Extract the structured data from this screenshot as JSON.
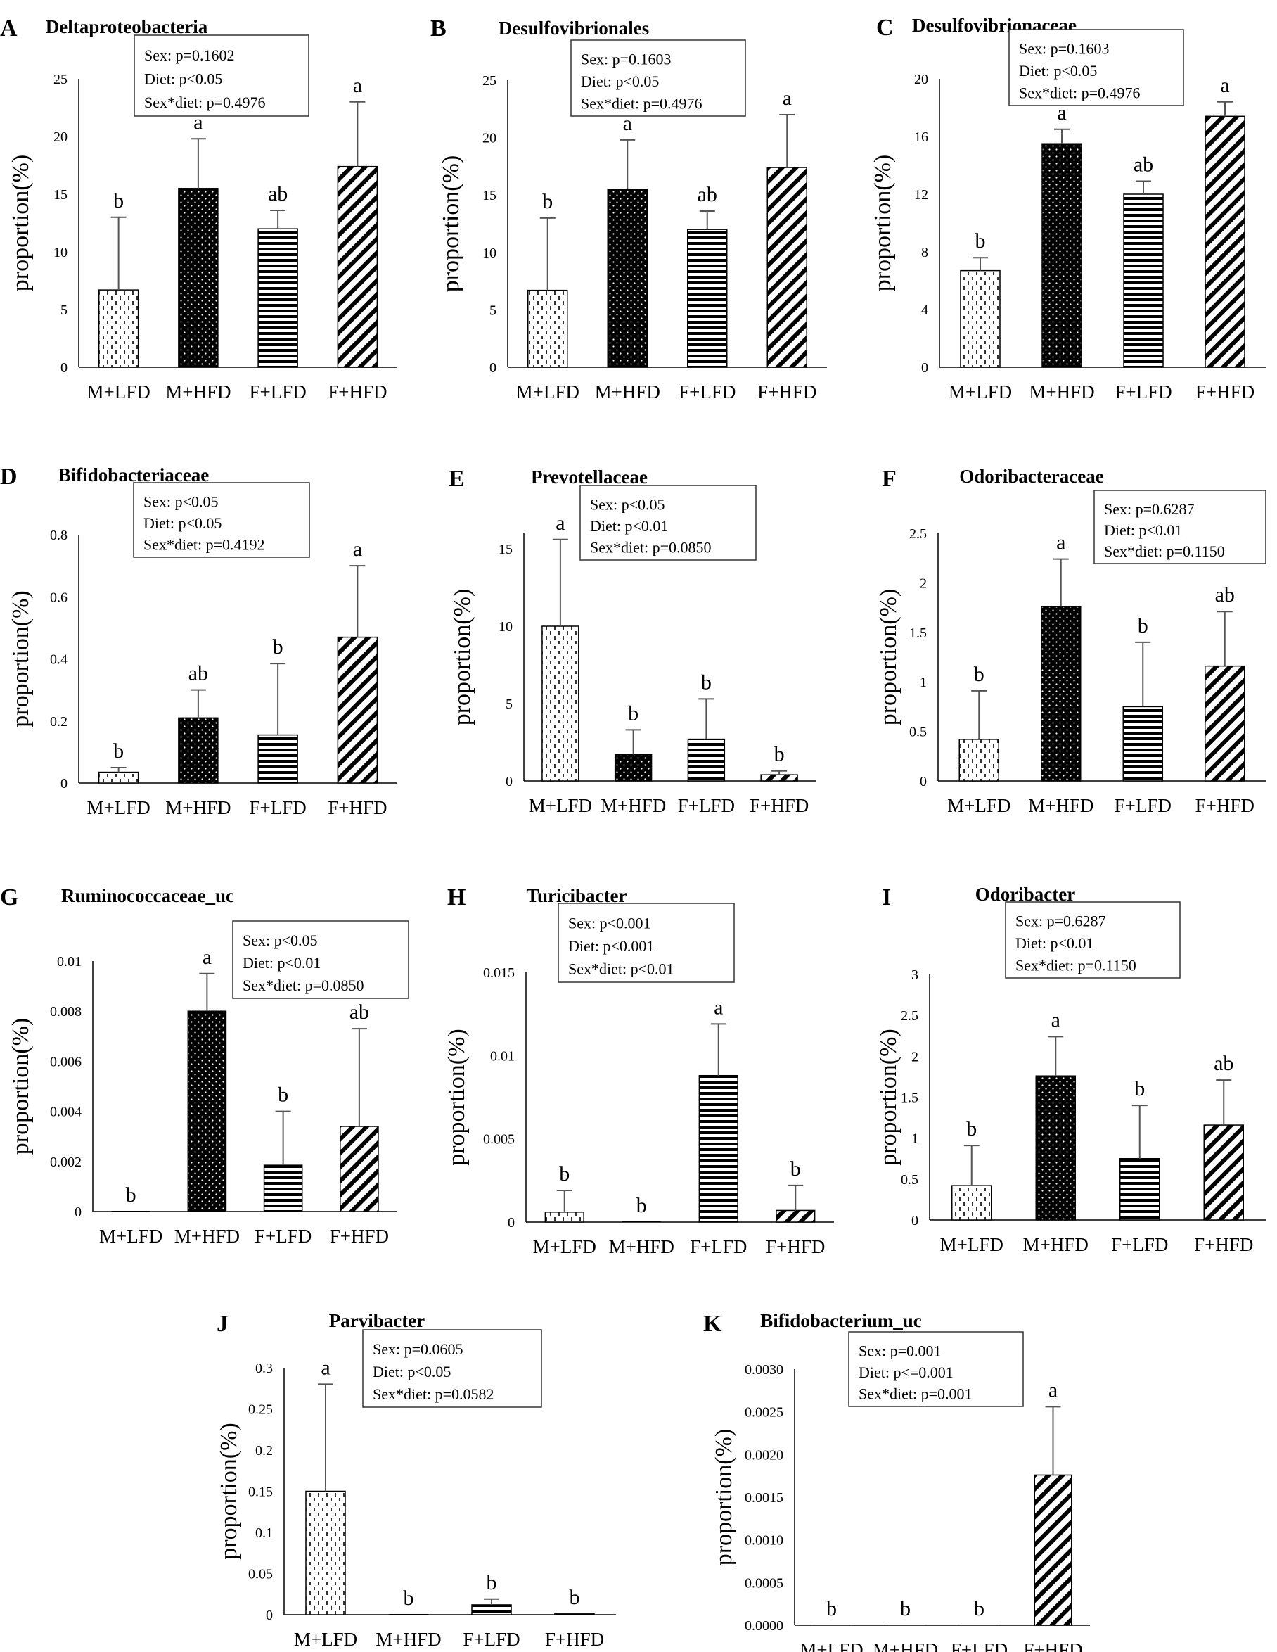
{
  "figure": {
    "chart_data": [
      {
        "panel": "A",
        "type": "bar",
        "title": "Deltaproteobacteria",
        "ylabel": "proportion(%)",
        "ylim": [
          0,
          25
        ],
        "yticks": [
          0,
          5,
          10,
          15,
          20,
          25
        ],
        "ytick_labels": [
          "0",
          "5",
          "10",
          "15",
          "20",
          "25"
        ],
        "categories": [
          "M+LFD",
          "M+HFD",
          "F+LFD",
          "F+HFD"
        ],
        "values": [
          6.7,
          15.5,
          12.0,
          17.4
        ],
        "errors": [
          6.3,
          4.3,
          1.6,
          5.6
        ],
        "letters": [
          "b",
          "a",
          "ab",
          "a"
        ],
        "stats": [
          "Sex: p=0.1602",
          "Diet: p<0.05",
          "Sex*diet: p=0.4976"
        ]
      },
      {
        "panel": "B",
        "type": "bar",
        "title": "Desulfovibrionales",
        "ylabel": "proportion(%)",
        "ylim": [
          0,
          25
        ],
        "yticks": [
          0,
          5,
          10,
          15,
          20,
          25
        ],
        "ytick_labels": [
          "0",
          "5",
          "10",
          "15",
          "20",
          "25"
        ],
        "categories": [
          "M+LFD",
          "M+HFD",
          "F+LFD",
          "F+HFD"
        ],
        "values": [
          6.7,
          15.5,
          12.0,
          17.4
        ],
        "errors": [
          6.3,
          4.3,
          1.6,
          4.6
        ],
        "letters": [
          "b",
          "a",
          "ab",
          "a"
        ],
        "stats": [
          "Sex: p=0.1603",
          "Diet: p<0.05",
          "Sex*diet: p=0.4976"
        ]
      },
      {
        "panel": "C",
        "type": "bar",
        "title": "Desulfovibrionaceae",
        "ylabel": "proportion(%)",
        "ylim": [
          0,
          20
        ],
        "yticks": [
          0,
          4,
          8,
          12,
          16,
          20
        ],
        "ytick_labels": [
          "0",
          "4",
          "8",
          "12",
          "16",
          "20"
        ],
        "categories": [
          "M+LFD",
          "M+HFD",
          "F+LFD",
          "F+HFD"
        ],
        "values": [
          6.7,
          15.5,
          12.0,
          17.4
        ],
        "errors": [
          0.9,
          1.0,
          0.9,
          1.0
        ],
        "letters": [
          "b",
          "a",
          "ab",
          "a"
        ],
        "stats": [
          "Sex: p=0.1603",
          "Diet: p<0.05",
          "Sex*diet: p=0.4976"
        ]
      },
      {
        "panel": "D",
        "type": "bar",
        "title": "Bifidobacteriaceae",
        "ylabel": "proportion(%)",
        "ylim": [
          0,
          0.8
        ],
        "yticks": [
          0,
          0.2,
          0.4,
          0.6,
          0.8
        ],
        "ytick_labels": [
          "0",
          "0.2",
          "0.4",
          "0.6",
          "0.8"
        ],
        "categories": [
          "M+LFD",
          "M+HFD",
          "F+LFD",
          "F+HFD"
        ],
        "values": [
          0.035,
          0.21,
          0.155,
          0.47
        ],
        "errors": [
          0.015,
          0.09,
          0.23,
          0.23
        ],
        "letters": [
          "b",
          "ab",
          "b",
          "a"
        ],
        "stats": [
          "Sex: p<0.05",
          "Diet: p<0.05",
          "Sex*diet: p=0.4192"
        ]
      },
      {
        "panel": "E",
        "type": "bar",
        "title": "Prevotellaceae",
        "ylabel": "proportion(%)",
        "ylim": [
          0,
          16
        ],
        "yticks": [
          0,
          5,
          10,
          15
        ],
        "ytick_labels": [
          "0",
          "5",
          "10",
          "15"
        ],
        "categories": [
          "M+LFD",
          "M+HFD",
          "F+LFD",
          "F+HFD"
        ],
        "values": [
          10.0,
          1.7,
          2.7,
          0.4
        ],
        "errors": [
          5.6,
          1.6,
          2.6,
          0.25
        ],
        "letters": [
          "a",
          "b",
          "b",
          "b"
        ],
        "stats": [
          "Sex: p<0.05",
          "Diet: p<0.01",
          "Sex*diet: p=0.0850"
        ]
      },
      {
        "panel": "F",
        "type": "bar",
        "title": "Odoribacteraceae",
        "ylabel": "proportion(%)",
        "ylim": [
          0,
          2.5
        ],
        "yticks": [
          0,
          0.5,
          1,
          1.5,
          2,
          2.5
        ],
        "ytick_labels": [
          "0",
          "0.5",
          "1",
          "1.5",
          "2",
          "2.5"
        ],
        "categories": [
          "M+LFD",
          "M+HFD",
          "F+LFD",
          "F+HFD"
        ],
        "values": [
          0.42,
          1.76,
          0.75,
          1.16
        ],
        "errors": [
          0.49,
          0.48,
          0.65,
          0.55
        ],
        "letters": [
          "b",
          "a",
          "b",
          "ab"
        ],
        "stats": [
          "Sex: p=0.6287",
          "Diet: p<0.01",
          "Sex*diet: p=0.1150"
        ]
      },
      {
        "panel": "G",
        "type": "bar",
        "title": "Ruminococcaceae_uc",
        "ylabel": "proportion(%)",
        "ylim": [
          0,
          0.01
        ],
        "yticks": [
          0,
          0.002,
          0.004,
          0.006,
          0.008,
          0.01
        ],
        "ytick_labels": [
          "0",
          "0.002",
          "0.004",
          "0.006",
          "0.008",
          "0.01"
        ],
        "categories": [
          "M+LFD",
          "M+HFD",
          "F+LFD",
          "F+HFD"
        ],
        "values": [
          0,
          0.008,
          0.00185,
          0.0034
        ],
        "errors": [
          0,
          0.0015,
          0.00215,
          0.0039
        ],
        "letters": [
          "b",
          "a",
          "b",
          "ab"
        ],
        "stats": [
          "Sex: p<0.05",
          "Diet: p<0.01",
          "Sex*diet: p=0.0850"
        ]
      },
      {
        "panel": "H",
        "type": "bar",
        "title": "Turicibacter",
        "ylabel": "proportion(%)",
        "ylim": [
          0,
          0.015
        ],
        "yticks": [
          0,
          0.005,
          0.01,
          0.015
        ],
        "ytick_labels": [
          "0",
          "0.005",
          "0.01",
          "0.015"
        ],
        "categories": [
          "M+LFD",
          "M+HFD",
          "F+LFD",
          "F+HFD"
        ],
        "values": [
          0.0006,
          0,
          0.0088,
          0.0007
        ],
        "errors": [
          0.0013,
          0,
          0.0031,
          0.0015
        ],
        "letters": [
          "b",
          "b",
          "a",
          "b"
        ],
        "stats": [
          "Sex: p<0.001",
          "Diet: p<0.001",
          "Sex*diet: p<0.01"
        ]
      },
      {
        "panel": "I",
        "type": "bar",
        "title": "Odoribacter",
        "ylabel": "proportion(%)",
        "ylim": [
          0,
          3
        ],
        "yticks": [
          0,
          0.5,
          1,
          1.5,
          2,
          2.5,
          3
        ],
        "ytick_labels": [
          "0",
          "0.5",
          "1",
          "1.5",
          "2",
          "2.5",
          "3"
        ],
        "categories": [
          "M+LFD",
          "M+HFD",
          "F+LFD",
          "F+HFD"
        ],
        "values": [
          0.42,
          1.76,
          0.75,
          1.16
        ],
        "errors": [
          0.49,
          0.48,
          0.65,
          0.55
        ],
        "letters": [
          "b",
          "a",
          "b",
          "ab"
        ],
        "stats": [
          "Sex: p=0.6287",
          "Diet: p<0.01",
          "Sex*diet: p=0.1150"
        ]
      },
      {
        "panel": "J",
        "type": "bar",
        "title": "Parvibacter",
        "ylabel": "proportion(%)",
        "ylim": [
          0,
          0.3
        ],
        "yticks": [
          0,
          0.05,
          0.1,
          0.15,
          0.2,
          0.25,
          0.3
        ],
        "ytick_labels": [
          "0",
          "0.05",
          "0.1",
          "0.15",
          "0.2",
          "0.25",
          "0.3"
        ],
        "categories": [
          "M+LFD",
          "M+HFD",
          "F+LFD",
          "F+HFD"
        ],
        "values": [
          0.15,
          0,
          0.012,
          0.001
        ],
        "errors": [
          0.13,
          0,
          0.007,
          0
        ],
        "letters": [
          "a",
          "b",
          "b",
          "b"
        ],
        "stats": [
          "Sex: p=0.0605",
          "Diet: p<0.05",
          "Sex*diet: p=0.0582"
        ]
      },
      {
        "panel": "K",
        "type": "bar",
        "title": "Bifidobacterium_uc",
        "ylabel": "proportion(%)",
        "ylim": [
          0,
          0.003
        ],
        "yticks": [
          0,
          0.0005,
          0.001,
          0.0015,
          0.002,
          0.0025,
          0.003
        ],
        "ytick_labels": [
          "0.0000",
          "0.0005",
          "0.0010",
          "0.0015",
          "0.0020",
          "0.0025",
          "0.0030"
        ],
        "categories": [
          "M+LFD",
          "M+HFD",
          "F+LFD",
          "F+HFD"
        ],
        "values": [
          0,
          0,
          0,
          0.00176
        ],
        "errors": [
          0,
          0,
          0,
          0.0008
        ],
        "letters": [
          "b",
          "b",
          "b",
          "a"
        ],
        "stats": [
          "Sex: p=0.001",
          "Diet: p<=0.001",
          "Sex*diet: p=0.001"
        ]
      }
    ]
  }
}
